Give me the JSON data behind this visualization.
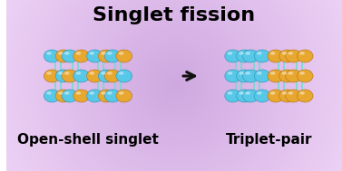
{
  "title": "Singlet fission",
  "label_left": "Open-shell singlet",
  "label_right": "Triplet-pair",
  "title_fontsize": 16,
  "label_fontsize": 11,
  "cyan_color": "#58c8e8",
  "orange_color": "#e8a830",
  "cyan_edge": "#2890b0",
  "orange_edge": "#b07010",
  "stick_color": "#70ddd0",
  "stick_edge": "#ffffff",
  "arrow_color": "#111111",
  "bg_inner": "#c0a0d8",
  "bg_outer": "#e8d0f5"
}
